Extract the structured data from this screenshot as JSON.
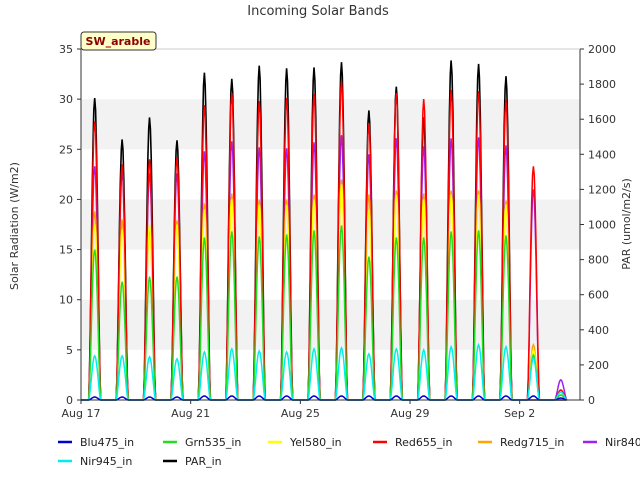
{
  "chart_data": {
    "type": "line",
    "title": "Incoming Solar Bands",
    "ylabel_left": "Solar Radiation (W/m2)",
    "ylabel_right": "PAR (umol/m2/s)",
    "ylim_left": [
      0,
      35
    ],
    "ylim_right": [
      0,
      2000
    ],
    "yticks_left": [
      0,
      5,
      10,
      15,
      20,
      25,
      30,
      35
    ],
    "yticks_right": [
      0,
      200,
      400,
      600,
      800,
      1000,
      1200,
      1400,
      1600,
      1800,
      2000
    ],
    "xlim_days": [
      17,
      35.2
    ],
    "xticks": [
      {
        "day": 17,
        "label": "Aug 17"
      },
      {
        "day": 21,
        "label": "Aug 21"
      },
      {
        "day": 25,
        "label": "Aug 25"
      },
      {
        "day": 29,
        "label": "Aug 29"
      },
      {
        "day": 33,
        "label": "Sep 2"
      }
    ],
    "badge": "SW_arable",
    "grid": "horizontal bands",
    "legend_position": "bottom",
    "days": [
      "Aug 17",
      "Aug 18",
      "Aug 19",
      "Aug 20",
      "Aug 21",
      "Aug 22",
      "Aug 23",
      "Aug 24",
      "Aug 25",
      "Aug 26",
      "Aug 27",
      "Aug 28",
      "Aug 29",
      "Aug 30",
      "Aug 31",
      "Sep 1",
      "Sep 2",
      "Sep 3"
    ],
    "series": [
      {
        "name": "Blu475_in",
        "color": "#0000cd",
        "axis": "left",
        "values": [
          0.3,
          0.3,
          0.3,
          0.3,
          0.4,
          0.4,
          0.4,
          0.4,
          0.4,
          0.4,
          0.4,
          0.4,
          0.4,
          0.4,
          0.4,
          0.4,
          0.4,
          0.2
        ]
      },
      {
        "name": "Grn535_in",
        "color": "#22dd22",
        "axis": "left",
        "values": [
          15.0,
          11.8,
          12.3,
          12.3,
          16.2,
          16.8,
          16.3,
          16.5,
          16.9,
          17.4,
          14.3,
          16.2,
          16.2,
          16.8,
          16.9,
          16.4,
          4.5,
          0.5
        ]
      },
      {
        "name": "Yel580_in",
        "color": "#ffff00",
        "axis": "left",
        "values": [
          17.5,
          17.0,
          17.5,
          17.5,
          19.0,
          20.0,
          19.5,
          19.5,
          20.0,
          21.5,
          19.0,
          20.5,
          20.0,
          20.5,
          20.5,
          19.5,
          5.0,
          0.5
        ]
      },
      {
        "name": "Red655_in",
        "color": "#ff0000",
        "axis": "left",
        "values": [
          27.8,
          23.5,
          24.0,
          24.2,
          29.4,
          30.6,
          29.8,
          30.1,
          30.5,
          31.8,
          27.6,
          30.6,
          30.0,
          30.9,
          30.8,
          29.9,
          23.3,
          1.0
        ]
      },
      {
        "name": "Redg715_in",
        "color": "#ffa500",
        "axis": "left",
        "values": [
          18.8,
          18.0,
          17.2,
          17.9,
          19.6,
          20.6,
          20.0,
          20.0,
          20.5,
          22.0,
          20.5,
          20.9,
          20.6,
          20.9,
          20.9,
          19.9,
          5.5,
          0.5
        ]
      },
      {
        "name": "Nir840_in",
        "color": "#a020f0",
        "axis": "left",
        "values": [
          23.3,
          22.8,
          22.6,
          22.6,
          24.8,
          25.8,
          25.2,
          25.1,
          25.7,
          26.4,
          24.5,
          26.1,
          25.3,
          26.1,
          26.2,
          25.4,
          21.0,
          2.0
        ]
      },
      {
        "name": "Nir945_in",
        "color": "#00eeee",
        "axis": "left",
        "values": [
          4.4,
          4.4,
          4.3,
          4.1,
          4.8,
          5.1,
          4.9,
          4.8,
          5.1,
          5.2,
          4.6,
          5.1,
          5.0,
          5.3,
          5.5,
          5.3,
          4.2,
          0.8
        ]
      },
      {
        "name": "PAR_in",
        "color": "#000000",
        "axis": "right",
        "values": [
          1720,
          1485,
          1610,
          1480,
          1865,
          1830,
          1905,
          1890,
          1895,
          1925,
          1650,
          1785,
          1610,
          1935,
          1915,
          1845,
          0,
          0
        ]
      }
    ]
  }
}
